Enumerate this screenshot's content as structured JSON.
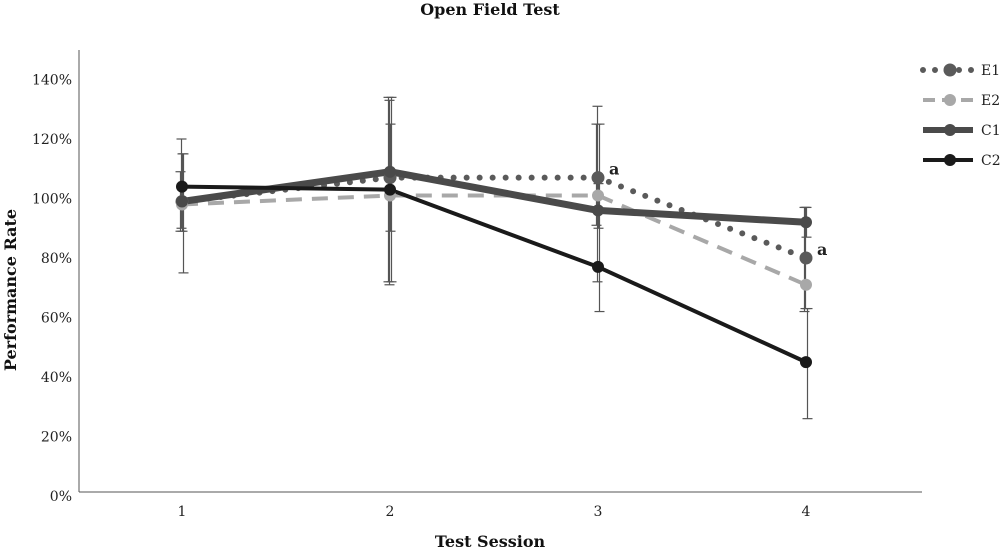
{
  "chart_data": {
    "type": "line",
    "title": "Open Field Test",
    "xlabel": "Test Session",
    "ylabel": "Performance Rate",
    "categories": [
      "1",
      "2",
      "3",
      "4"
    ],
    "ylim": [
      0,
      150
    ],
    "yticks": [
      0,
      20,
      40,
      60,
      80,
      100,
      120,
      140
    ],
    "ytick_labels": [
      "0%",
      "20%",
      "40%",
      "60%",
      "80%",
      "100%",
      "120%",
      "140%"
    ],
    "grid": false,
    "legend_position": "top-right",
    "series": [
      {
        "name": "E1",
        "values": [
          99,
          107,
          107,
          80
        ],
        "err_low": [
          89,
          72,
          91,
          62
        ],
        "err_high": [
          109,
          134,
          125,
          97
        ],
        "color": "#5a5a5a",
        "style": "dotted"
      },
      {
        "name": "E2",
        "values": [
          98,
          101,
          101,
          71
        ],
        "err_low": [
          90,
          71,
          72,
          63
        ],
        "err_high": [
          120,
          133,
          131,
          97
        ],
        "color": "#a8a8a8",
        "style": "dashed"
      },
      {
        "name": "C1",
        "values": [
          99,
          109,
          96,
          92
        ],
        "err_low": [
          89,
          89,
          90,
          87
        ],
        "err_high": [
          115,
          125,
          105,
          97
        ],
        "color": "#4a4a4a",
        "style": "thick"
      },
      {
        "name": "C2",
        "values": [
          104,
          103,
          77,
          45
        ],
        "err_low": [
          75,
          72,
          62,
          26
        ],
        "err_high": [
          115,
          134,
          125,
          63
        ],
        "color": "#1a1a1a",
        "style": "solid"
      }
    ],
    "annotations": [
      {
        "text": "a",
        "series": "E1",
        "category": "3"
      },
      {
        "text": "a",
        "series": "E1",
        "category": "4"
      }
    ]
  }
}
